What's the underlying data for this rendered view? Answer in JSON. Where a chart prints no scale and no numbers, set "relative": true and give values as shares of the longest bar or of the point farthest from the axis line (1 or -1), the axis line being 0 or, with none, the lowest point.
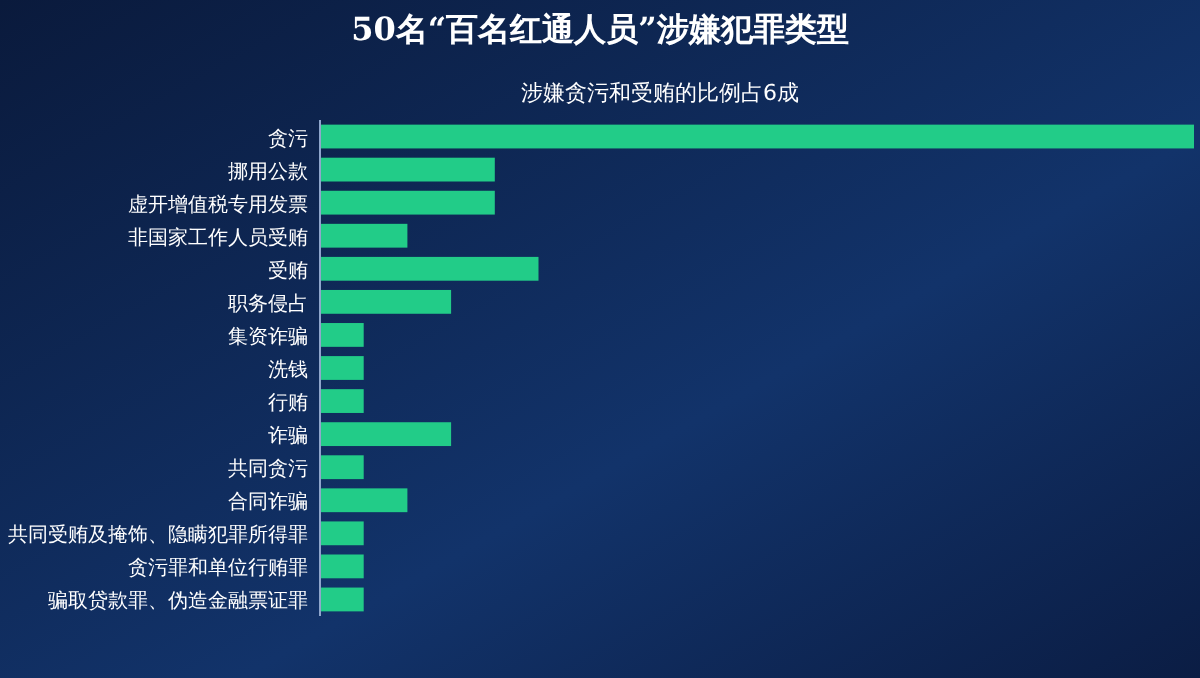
{
  "chart_data": {
    "type": "bar",
    "orientation": "horizontal",
    "relative": true,
    "title": "50名“百名红通人员”涉嫌犯罪类型",
    "subtitle": "涉嫌贪污和受贿的比例占6成",
    "categories": [
      "贪污",
      "挪用公款",
      "虚开增值税专用发票",
      "非国家工作人员受贿",
      "受贿",
      "职务侵占",
      "集资诈骗",
      "洗钱",
      "行贿",
      "诈骗",
      "共同贪污",
      "合同诈骗",
      "共同受贿及掩饰、隐瞒犯罪所得罪",
      "贪污罪和单位行贿罪",
      "骗取贷款罪、伪造金融票证罪"
    ],
    "series": [
      {
        "color": "#22cc88",
        "values": [
          1,
          0.2,
          0.2,
          0.1,
          0.25,
          0.15,
          0.05,
          0.05,
          0.05,
          0.15,
          0.05,
          0.1,
          0.05,
          0.05,
          0.05
        ]
      }
    ]
  }
}
